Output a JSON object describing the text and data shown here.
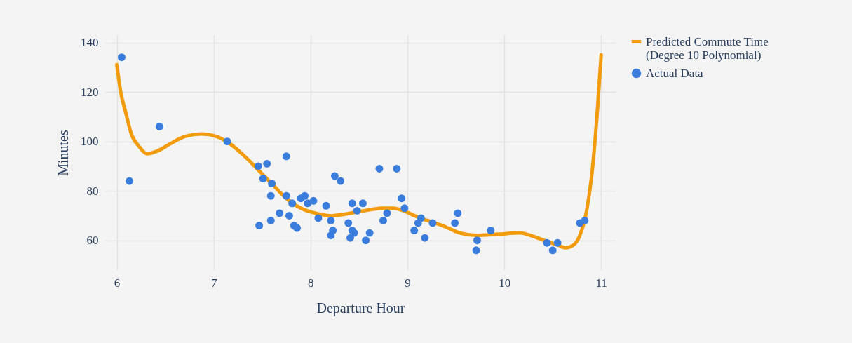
{
  "chart_data": {
    "type": "scatter",
    "xlabel": "Departure Hour",
    "ylabel": "Minutes",
    "xlim": [
      5.88,
      11.15
    ],
    "ylim": [
      48,
      143
    ],
    "xticks": [
      6,
      7,
      8,
      9,
      10,
      11
    ],
    "yticks": [
      60,
      80,
      100,
      120,
      140
    ],
    "grid": true,
    "legend": "top right",
    "series": [
      {
        "name": "Actual Data",
        "marker": "circle",
        "color": "#3b7ddd",
        "x": [
          6.05,
          6.13,
          6.44,
          7.14,
          7.46,
          7.55,
          7.51,
          7.6,
          7.59,
          7.47,
          7.59,
          7.68,
          7.75,
          7.75,
          7.78,
          7.83,
          7.86,
          7.9,
          7.94,
          7.81,
          7.97,
          8.03,
          8.08,
          8.16,
          8.21,
          8.21,
          8.23,
          8.25,
          8.31,
          8.39,
          8.43,
          8.41,
          8.43,
          8.45,
          8.48,
          8.54,
          8.57,
          8.61,
          8.71,
          8.75,
          8.79,
          8.89,
          8.94,
          8.97,
          9.07,
          9.11,
          9.14,
          9.18,
          9.26,
          9.49,
          9.52,
          9.71,
          9.72,
          9.86,
          10.44,
          10.5,
          10.55,
          10.78,
          10.83
        ],
        "values": [
          134,
          84,
          106,
          100,
          90,
          91,
          85,
          83,
          78,
          66,
          68,
          71,
          94,
          78,
          70,
          66,
          65,
          77,
          78,
          75,
          75,
          76,
          69,
          74,
          68,
          62,
          64,
          86,
          84,
          67,
          75,
          61,
          64,
          63,
          72,
          75,
          60,
          63,
          89,
          68,
          71,
          89,
          77,
          73,
          64,
          67,
          69,
          61,
          67,
          67,
          71,
          56,
          60,
          64,
          59,
          56,
          59,
          67,
          68
        ]
      },
      {
        "name": "Predicted Commute Time (Degree 10 Polynomial)",
        "type": "line",
        "color": "#f29b0c",
        "line_style": "solid",
        "x": [
          6.0,
          6.04,
          6.09,
          6.15,
          6.23,
          6.31,
          6.41,
          6.55,
          6.7,
          6.88,
          7.03,
          7.17,
          7.32,
          7.46,
          7.61,
          7.75,
          7.9,
          8.05,
          8.2,
          8.34,
          8.48,
          8.63,
          8.74,
          8.85,
          8.96,
          9.07,
          9.21,
          9.36,
          9.54,
          9.72,
          9.94,
          10.16,
          10.27,
          10.41,
          10.56,
          10.63,
          10.71,
          10.78,
          10.85,
          10.91,
          10.96,
          11.0
        ],
        "values": [
          131,
          120,
          112,
          103,
          98,
          95,
          96,
          99,
          102,
          103,
          102,
          99,
          94,
          88.5,
          82.5,
          77,
          73,
          71,
          70,
          70.5,
          71.5,
          72.5,
          73,
          73,
          72,
          70,
          68,
          66,
          63,
          62,
          62.5,
          63,
          62,
          60,
          58,
          57,
          58,
          62,
          72,
          89,
          112,
          135
        ]
      }
    ]
  }
}
